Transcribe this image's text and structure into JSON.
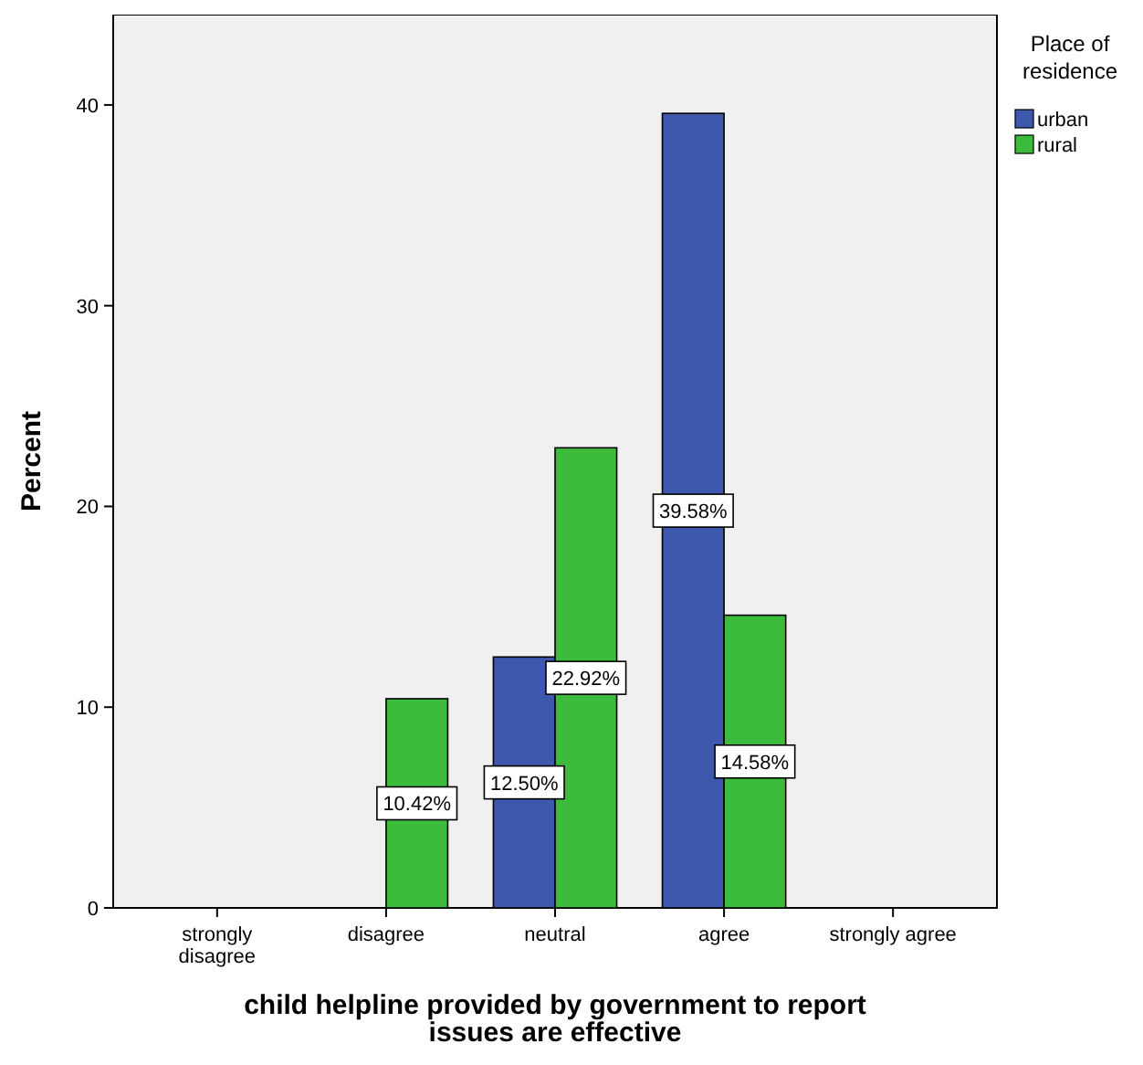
{
  "chart_data": {
    "type": "bar",
    "xlabel": "child helpline provided by government to report issues are effective",
    "ylabel": "Percent",
    "legend_title": "Place of residence",
    "legend": "top right",
    "categories": [
      "strongly disagree",
      "disagree",
      "neutral",
      "agree",
      "strongly agree"
    ],
    "series": [
      {
        "name": "urban",
        "color": "#3d58ac",
        "values": [
          null,
          null,
          12.5,
          39.58,
          null
        ],
        "value_labels": [
          null,
          null,
          "12.50%",
          "39.58%",
          null
        ]
      },
      {
        "name": "rural",
        "color": "#3dbb3d",
        "values": [
          null,
          10.42,
          22.92,
          14.58,
          null
        ],
        "value_labels": [
          null,
          "10.42%",
          "22.92%",
          "14.58%",
          null
        ]
      }
    ],
    "ylim": [
      0,
      44.5
    ],
    "yticks": [
      0,
      10,
      20,
      30,
      40
    ],
    "grid": false
  }
}
